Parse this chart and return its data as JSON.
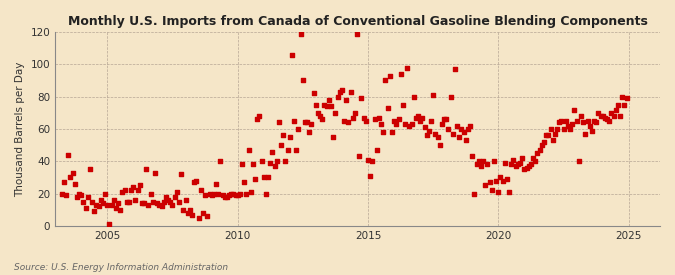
{
  "title": "Monthly U.S. Imports from Canada of Conventional Gasoline Blending Components",
  "ylabel": "Thousand Barrels per Day",
  "source": "Source: U.S. Energy Information Administration",
  "bg_color": "#f5e6c8",
  "plot_bg_color": "#f5e6c8",
  "dot_color": "#cc0000",
  "dot_size": 5,
  "xlim": [
    2003.0,
    2026.2
  ],
  "ylim": [
    0,
    120
  ],
  "yticks": [
    0,
    20,
    40,
    60,
    80,
    100,
    120
  ],
  "xticks": [
    2005,
    2010,
    2015,
    2020,
    2025
  ],
  "data": [
    [
      2003.25,
      20
    ],
    [
      2003.33,
      27
    ],
    [
      2003.42,
      19
    ],
    [
      2003.5,
      44
    ],
    [
      2003.58,
      30
    ],
    [
      2003.67,
      33
    ],
    [
      2003.75,
      26
    ],
    [
      2003.83,
      18
    ],
    [
      2003.92,
      20
    ],
    [
      2004.0,
      19
    ],
    [
      2004.08,
      15
    ],
    [
      2004.17,
      11
    ],
    [
      2004.25,
      18
    ],
    [
      2004.33,
      35
    ],
    [
      2004.42,
      15
    ],
    [
      2004.5,
      9
    ],
    [
      2004.58,
      13
    ],
    [
      2004.67,
      12
    ],
    [
      2004.75,
      16
    ],
    [
      2004.83,
      14
    ],
    [
      2004.92,
      20
    ],
    [
      2005.0,
      13
    ],
    [
      2005.08,
      1
    ],
    [
      2005.17,
      13
    ],
    [
      2005.25,
      16
    ],
    [
      2005.33,
      11
    ],
    [
      2005.42,
      14
    ],
    [
      2005.5,
      10
    ],
    [
      2005.58,
      21
    ],
    [
      2005.67,
      22
    ],
    [
      2005.75,
      15
    ],
    [
      2005.83,
      15
    ],
    [
      2005.92,
      22
    ],
    [
      2006.0,
      24
    ],
    [
      2006.08,
      16
    ],
    [
      2006.17,
      22
    ],
    [
      2006.25,
      25
    ],
    [
      2006.33,
      14
    ],
    [
      2006.42,
      14
    ],
    [
      2006.5,
      35
    ],
    [
      2006.58,
      13
    ],
    [
      2006.67,
      20
    ],
    [
      2006.75,
      15
    ],
    [
      2006.83,
      33
    ],
    [
      2006.92,
      14
    ],
    [
      2007.0,
      13
    ],
    [
      2007.08,
      12
    ],
    [
      2007.17,
      15
    ],
    [
      2007.25,
      18
    ],
    [
      2007.33,
      16
    ],
    [
      2007.42,
      15
    ],
    [
      2007.5,
      13
    ],
    [
      2007.58,
      18
    ],
    [
      2007.67,
      21
    ],
    [
      2007.75,
      15
    ],
    [
      2007.83,
      32
    ],
    [
      2007.92,
      10
    ],
    [
      2008.0,
      16
    ],
    [
      2008.08,
      8
    ],
    [
      2008.17,
      10
    ],
    [
      2008.25,
      7
    ],
    [
      2008.33,
      27
    ],
    [
      2008.42,
      28
    ],
    [
      2008.5,
      5
    ],
    [
      2008.58,
      22
    ],
    [
      2008.67,
      8
    ],
    [
      2008.75,
      19
    ],
    [
      2008.83,
      6
    ],
    [
      2008.92,
      20
    ],
    [
      2009.0,
      19
    ],
    [
      2009.08,
      20
    ],
    [
      2009.17,
      26
    ],
    [
      2009.25,
      20
    ],
    [
      2009.33,
      40
    ],
    [
      2009.42,
      19
    ],
    [
      2009.5,
      18
    ],
    [
      2009.58,
      18
    ],
    [
      2009.67,
      19
    ],
    [
      2009.75,
      20
    ],
    [
      2009.83,
      20
    ],
    [
      2009.92,
      19
    ],
    [
      2010.0,
      19
    ],
    [
      2010.08,
      20
    ],
    [
      2010.17,
      38
    ],
    [
      2010.25,
      27
    ],
    [
      2010.33,
      20
    ],
    [
      2010.42,
      47
    ],
    [
      2010.5,
      21
    ],
    [
      2010.58,
      38
    ],
    [
      2010.67,
      29
    ],
    [
      2010.75,
      66
    ],
    [
      2010.83,
      68
    ],
    [
      2010.92,
      40
    ],
    [
      2011.0,
      30
    ],
    [
      2011.08,
      20
    ],
    [
      2011.17,
      30
    ],
    [
      2011.25,
      39
    ],
    [
      2011.33,
      46
    ],
    [
      2011.42,
      37
    ],
    [
      2011.5,
      40
    ],
    [
      2011.58,
      64
    ],
    [
      2011.67,
      50
    ],
    [
      2011.75,
      56
    ],
    [
      2011.83,
      40
    ],
    [
      2011.92,
      47
    ],
    [
      2012.0,
      55
    ],
    [
      2012.08,
      106
    ],
    [
      2012.17,
      65
    ],
    [
      2012.25,
      47
    ],
    [
      2012.33,
      60
    ],
    [
      2012.42,
      119
    ],
    [
      2012.5,
      90
    ],
    [
      2012.58,
      64
    ],
    [
      2012.67,
      64
    ],
    [
      2012.75,
      58
    ],
    [
      2012.83,
      63
    ],
    [
      2012.92,
      82
    ],
    [
      2013.0,
      75
    ],
    [
      2013.08,
      70
    ],
    [
      2013.17,
      68
    ],
    [
      2013.25,
      66
    ],
    [
      2013.33,
      75
    ],
    [
      2013.42,
      74
    ],
    [
      2013.5,
      78
    ],
    [
      2013.58,
      74
    ],
    [
      2013.67,
      55
    ],
    [
      2013.75,
      70
    ],
    [
      2013.83,
      80
    ],
    [
      2013.92,
      83
    ],
    [
      2014.0,
      84
    ],
    [
      2014.08,
      65
    ],
    [
      2014.17,
      78
    ],
    [
      2014.25,
      64
    ],
    [
      2014.33,
      83
    ],
    [
      2014.42,
      67
    ],
    [
      2014.5,
      70
    ],
    [
      2014.58,
      119
    ],
    [
      2014.67,
      43
    ],
    [
      2014.75,
      79
    ],
    [
      2014.83,
      67
    ],
    [
      2014.92,
      65
    ],
    [
      2015.0,
      41
    ],
    [
      2015.08,
      31
    ],
    [
      2015.17,
      40
    ],
    [
      2015.25,
      66
    ],
    [
      2015.33,
      47
    ],
    [
      2015.42,
      67
    ],
    [
      2015.5,
      63
    ],
    [
      2015.58,
      58
    ],
    [
      2015.67,
      90
    ],
    [
      2015.75,
      73
    ],
    [
      2015.83,
      93
    ],
    [
      2015.92,
      58
    ],
    [
      2016.0,
      65
    ],
    [
      2016.08,
      63
    ],
    [
      2016.17,
      66
    ],
    [
      2016.25,
      94
    ],
    [
      2016.33,
      75
    ],
    [
      2016.42,
      63
    ],
    [
      2016.5,
      98
    ],
    [
      2016.58,
      62
    ],
    [
      2016.67,
      63
    ],
    [
      2016.75,
      80
    ],
    [
      2016.83,
      67
    ],
    [
      2016.92,
      68
    ],
    [
      2017.0,
      65
    ],
    [
      2017.08,
      67
    ],
    [
      2017.17,
      61
    ],
    [
      2017.25,
      56
    ],
    [
      2017.33,
      59
    ],
    [
      2017.42,
      65
    ],
    [
      2017.5,
      81
    ],
    [
      2017.58,
      57
    ],
    [
      2017.67,
      55
    ],
    [
      2017.75,
      50
    ],
    [
      2017.83,
      63
    ],
    [
      2017.92,
      66
    ],
    [
      2018.0,
      66
    ],
    [
      2018.08,
      60
    ],
    [
      2018.17,
      80
    ],
    [
      2018.25,
      57
    ],
    [
      2018.33,
      97
    ],
    [
      2018.42,
      62
    ],
    [
      2018.5,
      55
    ],
    [
      2018.58,
      60
    ],
    [
      2018.67,
      58
    ],
    [
      2018.75,
      53
    ],
    [
      2018.83,
      60
    ],
    [
      2018.92,
      62
    ],
    [
      2019.0,
      43
    ],
    [
      2019.08,
      20
    ],
    [
      2019.17,
      38
    ],
    [
      2019.25,
      40
    ],
    [
      2019.33,
      37
    ],
    [
      2019.42,
      40
    ],
    [
      2019.5,
      25
    ],
    [
      2019.58,
      38
    ],
    [
      2019.67,
      27
    ],
    [
      2019.75,
      22
    ],
    [
      2019.83,
      40
    ],
    [
      2019.92,
      28
    ],
    [
      2020.0,
      21
    ],
    [
      2020.08,
      30
    ],
    [
      2020.17,
      28
    ],
    [
      2020.25,
      39
    ],
    [
      2020.33,
      29
    ],
    [
      2020.42,
      21
    ],
    [
      2020.5,
      38
    ],
    [
      2020.58,
      41
    ],
    [
      2020.67,
      37
    ],
    [
      2020.75,
      38
    ],
    [
      2020.83,
      39
    ],
    [
      2020.92,
      42
    ],
    [
      2021.0,
      35
    ],
    [
      2021.08,
      36
    ],
    [
      2021.17,
      37
    ],
    [
      2021.25,
      38
    ],
    [
      2021.33,
      42
    ],
    [
      2021.42,
      40
    ],
    [
      2021.5,
      45
    ],
    [
      2021.58,
      47
    ],
    [
      2021.67,
      50
    ],
    [
      2021.75,
      52
    ],
    [
      2021.83,
      56
    ],
    [
      2021.92,
      56
    ],
    [
      2022.0,
      60
    ],
    [
      2022.08,
      53
    ],
    [
      2022.17,
      57
    ],
    [
      2022.25,
      60
    ],
    [
      2022.33,
      64
    ],
    [
      2022.42,
      65
    ],
    [
      2022.5,
      60
    ],
    [
      2022.58,
      65
    ],
    [
      2022.67,
      62
    ],
    [
      2022.75,
      60
    ],
    [
      2022.83,
      63
    ],
    [
      2022.92,
      72
    ],
    [
      2023.0,
      65
    ],
    [
      2023.08,
      40
    ],
    [
      2023.17,
      68
    ],
    [
      2023.25,
      64
    ],
    [
      2023.33,
      57
    ],
    [
      2023.42,
      65
    ],
    [
      2023.5,
      62
    ],
    [
      2023.58,
      59
    ],
    [
      2023.67,
      65
    ],
    [
      2023.75,
      64
    ],
    [
      2023.83,
      70
    ],
    [
      2023.92,
      68
    ],
    [
      2024.0,
      68
    ],
    [
      2024.08,
      67
    ],
    [
      2024.17,
      66
    ],
    [
      2024.25,
      65
    ],
    [
      2024.33,
      70
    ],
    [
      2024.42,
      68
    ],
    [
      2024.5,
      72
    ],
    [
      2024.58,
      75
    ],
    [
      2024.67,
      68
    ],
    [
      2024.75,
      80
    ],
    [
      2024.83,
      75
    ],
    [
      2024.92,
      79
    ]
  ]
}
